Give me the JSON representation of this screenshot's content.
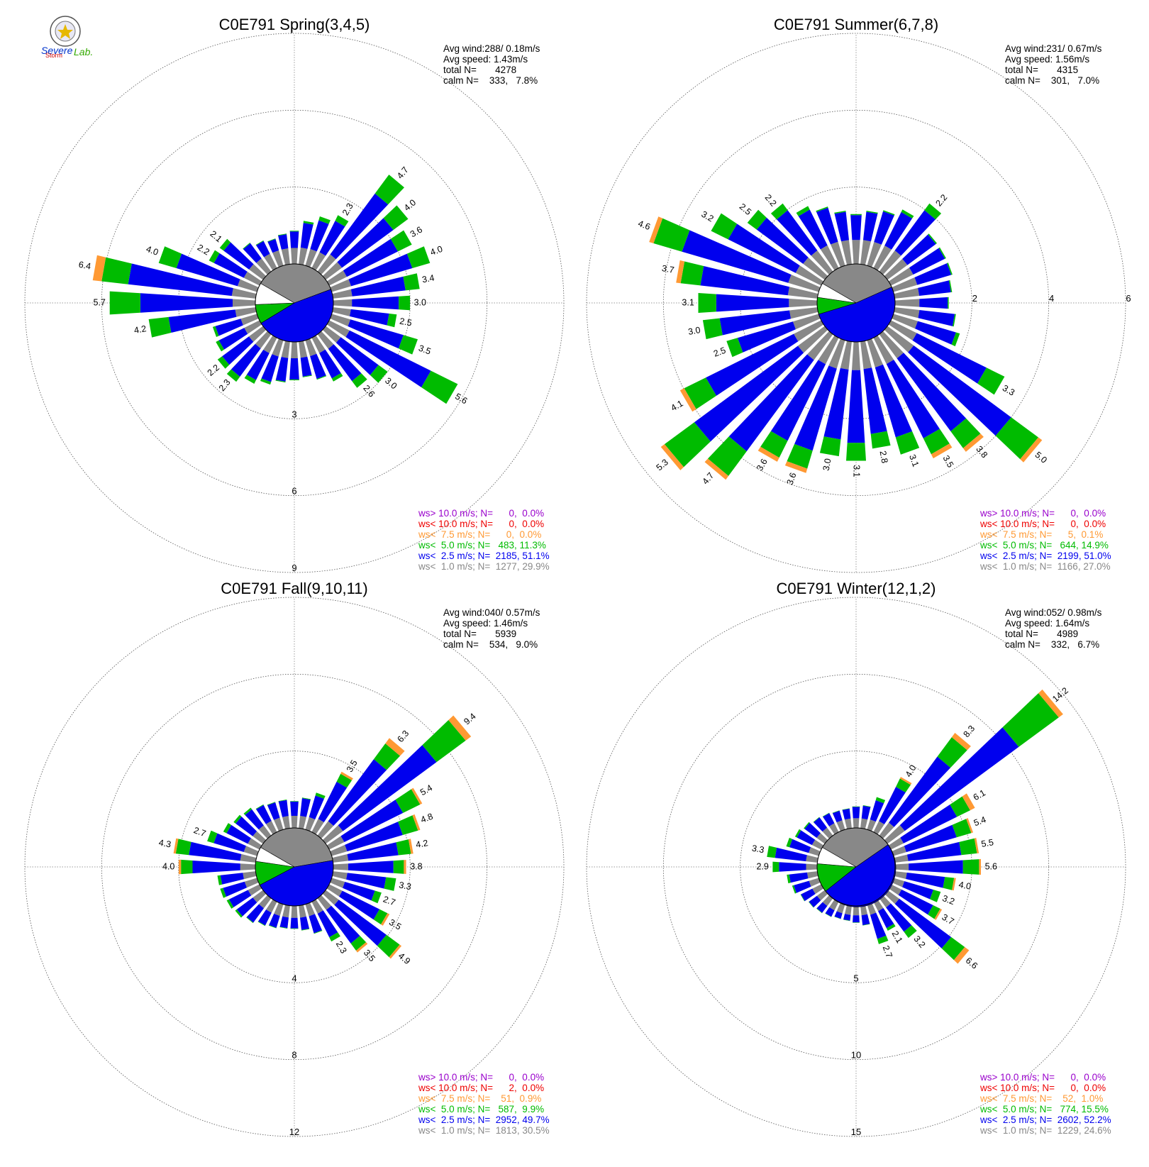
{
  "logo": {
    "line1": "Severe",
    "line2": "Storm",
    "line3": "Lab."
  },
  "chart_data": [
    {
      "type": "wind-rose",
      "title": "C0E791 Spring(3,4,5)",
      "stats": {
        "avg_wind": "Avg wind:288/ 0.18m/s",
        "avg_speed": "Avg speed: 1.43m/s",
        "total": "total N=       4278",
        "calm": "calm N=    333,   7.8%"
      },
      "rings": [
        3,
        6,
        9
      ],
      "ring_labels": [
        "3",
        "6",
        "9"
      ],
      "ring_label_axis": "south",
      "calm_pie": [
        0.36,
        0.47,
        0.08,
        0.09
      ],
      "directions": [
        {
          "dir": 10,
          "v": 1.7
        },
        {
          "dir": 20,
          "v": 2.0
        },
        {
          "dir": 30,
          "v": 2.3,
          "label": "2.3"
        },
        {
          "dir": 40,
          "v": 4.7,
          "label": "4.7"
        },
        {
          "dir": 50,
          "v": 4.0,
          "label": "4.0"
        },
        {
          "dir": 60,
          "v": 3.6,
          "label": "3.6"
        },
        {
          "dir": 70,
          "v": 4.0,
          "label": "4.0"
        },
        {
          "dir": 80,
          "v": 3.4,
          "label": "3.4"
        },
        {
          "dir": 90,
          "v": 3.0,
          "label": "3.0"
        },
        {
          "dir": 100,
          "v": 2.5,
          "label": "2.5"
        },
        {
          "dir": 110,
          "v": 3.5,
          "label": "3.5"
        },
        {
          "dir": 120,
          "v": 5.6,
          "label": "5.6"
        },
        {
          "dir": 130,
          "v": 3.0,
          "label": "3.0"
        },
        {
          "dir": 140,
          "v": 2.6,
          "label": "2.6"
        },
        {
          "dir": 150,
          "v": 1.9
        },
        {
          "dir": 160,
          "v": 1.6
        },
        {
          "dir": 170,
          "v": 1.4
        },
        {
          "dir": 180,
          "v": 1.5
        },
        {
          "dir": 190,
          "v": 1.6
        },
        {
          "dir": 200,
          "v": 1.8
        },
        {
          "dir": 210,
          "v": 2.0
        },
        {
          "dir": 220,
          "v": 2.3,
          "label": "2.3"
        },
        {
          "dir": 230,
          "v": 2.2,
          "label": "2.2"
        },
        {
          "dir": 240,
          "v": 1.9
        },
        {
          "dir": 250,
          "v": 1.8
        },
        {
          "dir": 260,
          "v": 4.2,
          "label": "4.2"
        },
        {
          "dir": 270,
          "v": 5.7,
          "label": "5.7"
        },
        {
          "dir": 280,
          "v": 6.4,
          "label": "6.4"
        },
        {
          "dir": 290,
          "v": 4.0,
          "label": "4.0"
        },
        {
          "dir": 300,
          "v": 2.2,
          "label": "2.2"
        },
        {
          "dir": 310,
          "v": 2.1,
          "label": "2.1"
        },
        {
          "dir": 320,
          "v": 1.4
        },
        {
          "dir": 330,
          "v": 1.2
        },
        {
          "dir": 340,
          "v": 1.1
        },
        {
          "dir": 350,
          "v": 1.2
        },
        {
          "dir": 360,
          "v": 1.3
        }
      ],
      "legend": [
        {
          "text": "ws> 10.0 m/s; N=      0,  0.0%",
          "color": "#9900cc"
        },
        {
          "text": "ws< 10.0 m/s; N=      0,  0.0%",
          "color": "#ee0000"
        },
        {
          "text": "ws<  7.5 m/s; N=      0,  0.0%",
          "color": "#ff9933"
        },
        {
          "text": "ws<  5.0 m/s; N=   483, 11.3%",
          "color": "#00bb00"
        },
        {
          "text": "ws<  2.5 m/s; N=  2185, 51.1%",
          "color": "#0000ee"
        },
        {
          "text": "ws<  1.0 m/s; N=  1277, 29.9%",
          "color": "#888888"
        }
      ]
    },
    {
      "type": "wind-rose",
      "title": "C0E791 Summer(6,7,8)",
      "stats": {
        "avg_wind": "Avg wind:231/ 0.67m/s",
        "avg_speed": "Avg speed: 1.56m/s",
        "total": "total N=       4315",
        "calm": "calm N=    301,   7.0%"
      },
      "rings": [
        2,
        4,
        6
      ],
      "ring_labels": [
        "2",
        "4",
        "6"
      ],
      "ring_label_axis": "east",
      "calm_pie": [
        0.35,
        0.52,
        0.07,
        0.06
      ],
      "directions": [
        {
          "dir": 10,
          "v": 1.4
        },
        {
          "dir": 20,
          "v": 1.5
        },
        {
          "dir": 30,
          "v": 1.7
        },
        {
          "dir": 40,
          "v": 2.2,
          "label": "2.2"
        },
        {
          "dir": 50,
          "v": 1.6
        },
        {
          "dir": 60,
          "v": 1.6
        },
        {
          "dir": 70,
          "v": 1.6
        },
        {
          "dir": 80,
          "v": 1.5
        },
        {
          "dir": 90,
          "v": 1.4
        },
        {
          "dir": 100,
          "v": 1.6
        },
        {
          "dir": 110,
          "v": 1.8
        },
        {
          "dir": 120,
          "v": 3.3,
          "label": "3.3"
        },
        {
          "dir": 130,
          "v": 5.0,
          "label": "5.0"
        },
        {
          "dir": 140,
          "v": 3.8,
          "label": "3.8"
        },
        {
          "dir": 150,
          "v": 3.5,
          "label": "3.5"
        },
        {
          "dir": 160,
          "v": 3.1,
          "label": "3.1"
        },
        {
          "dir": 170,
          "v": 2.8,
          "label": "2.8"
        },
        {
          "dir": 180,
          "v": 3.1,
          "label": "3.1"
        },
        {
          "dir": 190,
          "v": 3.0,
          "label": "3.0"
        },
        {
          "dir": 200,
          "v": 3.6,
          "label": "3.6"
        },
        {
          "dir": 210,
          "v": 3.6,
          "label": "3.6"
        },
        {
          "dir": 220,
          "v": 4.7,
          "label": "4.7"
        },
        {
          "dir": 230,
          "v": 5.3,
          "label": "5.3"
        },
        {
          "dir": 240,
          "v": 4.1,
          "label": "4.1"
        },
        {
          "dir": 250,
          "v": 2.5,
          "label": "2.5"
        },
        {
          "dir": 260,
          "v": 3.0,
          "label": "3.0"
        },
        {
          "dir": 270,
          "v": 3.1,
          "label": "3.1"
        },
        {
          "dir": 280,
          "v": 3.7,
          "label": "3.7"
        },
        {
          "dir": 290,
          "v": 4.6,
          "label": "4.6"
        },
        {
          "dir": 300,
          "v": 3.2,
          "label": "3.2"
        },
        {
          "dir": 310,
          "v": 2.5,
          "label": "2.5"
        },
        {
          "dir": 320,
          "v": 2.2,
          "label": "2.2"
        },
        {
          "dir": 330,
          "v": 1.8
        },
        {
          "dir": 340,
          "v": 1.6
        },
        {
          "dir": 350,
          "v": 1.4
        },
        {
          "dir": 360,
          "v": 1.3
        }
      ],
      "legend": [
        {
          "text": "ws> 10.0 m/s; N=      0,  0.0%",
          "color": "#9900cc"
        },
        {
          "text": "ws< 10.0 m/s; N=      0,  0.0%",
          "color": "#ee0000"
        },
        {
          "text": "ws<  7.5 m/s; N=      5,  0.1%",
          "color": "#ff9933"
        },
        {
          "text": "ws<  5.0 m/s; N=   644, 14.9%",
          "color": "#00bb00"
        },
        {
          "text": "ws<  2.5 m/s; N=  2199, 51.0%",
          "color": "#0000ee"
        },
        {
          "text": "ws<  1.0 m/s; N=  1166, 27.0%",
          "color": "#888888"
        }
      ]
    },
    {
      "type": "wind-rose",
      "title": "C0E791 Fall(9,10,11)",
      "stats": {
        "avg_wind": "Avg wind:040/ 0.57m/s",
        "avg_speed": "Avg speed: 1.46m/s",
        "total": "total N=       5939",
        "calm": "calm N=    534,   9.0%"
      },
      "rings": [
        4,
        8,
        12
      ],
      "ring_labels": [
        "4",
        "8",
        "12"
      ],
      "ring_label_axis": "south",
      "calm_pie": [
        0.39,
        0.45,
        0.1,
        0.06
      ],
      "directions": [
        {
          "dir": 10,
          "v": 1.6
        },
        {
          "dir": 20,
          "v": 2.0
        },
        {
          "dir": 30,
          "v": 3.5,
          "label": "3.5"
        },
        {
          "dir": 40,
          "v": 6.3,
          "label": "6.3"
        },
        {
          "dir": 50,
          "v": 9.4,
          "label": "9.4"
        },
        {
          "dir": 60,
          "v": 5.4,
          "label": "5.4"
        },
        {
          "dir": 70,
          "v": 4.8,
          "label": "4.8"
        },
        {
          "dir": 80,
          "v": 4.2,
          "label": "4.2"
        },
        {
          "dir": 90,
          "v": 3.8,
          "label": "3.8"
        },
        {
          "dir": 100,
          "v": 3.3,
          "label": "3.3"
        },
        {
          "dir": 110,
          "v": 2.7,
          "label": "2.7"
        },
        {
          "dir": 120,
          "v": 3.5,
          "label": "3.5"
        },
        {
          "dir": 130,
          "v": 4.9,
          "label": "4.9"
        },
        {
          "dir": 140,
          "v": 3.5,
          "label": "3.5"
        },
        {
          "dir": 150,
          "v": 2.3,
          "label": "2.3"
        },
        {
          "dir": 160,
          "v": 1.6
        },
        {
          "dir": 170,
          "v": 1.3
        },
        {
          "dir": 180,
          "v": 1.2
        },
        {
          "dir": 190,
          "v": 1.2
        },
        {
          "dir": 200,
          "v": 1.3
        },
        {
          "dir": 210,
          "v": 1.4
        },
        {
          "dir": 220,
          "v": 1.6
        },
        {
          "dir": 230,
          "v": 1.8
        },
        {
          "dir": 240,
          "v": 1.9
        },
        {
          "dir": 250,
          "v": 2.0
        },
        {
          "dir": 260,
          "v": 2.0
        },
        {
          "dir": 270,
          "v": 4.0,
          "label": "4.0"
        },
        {
          "dir": 280,
          "v": 4.3,
          "label": "4.3"
        },
        {
          "dir": 290,
          "v": 2.7,
          "label": "2.7"
        },
        {
          "dir": 300,
          "v": 2.1
        },
        {
          "dir": 310,
          "v": 1.9
        },
        {
          "dir": 320,
          "v": 1.8
        },
        {
          "dir": 330,
          "v": 1.6
        },
        {
          "dir": 340,
          "v": 1.5
        },
        {
          "dir": 350,
          "v": 1.5
        },
        {
          "dir": 360,
          "v": 1.4
        }
      ],
      "legend": [
        {
          "text": "ws> 10.0 m/s; N=      0,  0.0%",
          "color": "#9900cc"
        },
        {
          "text": "ws< 10.0 m/s; N=      2,  0.0%",
          "color": "#ee0000"
        },
        {
          "text": "ws<  7.5 m/s; N=    51,  0.9%",
          "color": "#ff9933"
        },
        {
          "text": "ws<  5.0 m/s; N=   587,  9.9%",
          "color": "#00bb00"
        },
        {
          "text": "ws<  2.5 m/s; N=  2952, 49.7%",
          "color": "#0000ee"
        },
        {
          "text": "ws<  1.0 m/s; N=  1813, 30.5%",
          "color": "#888888"
        }
      ]
    },
    {
      "type": "wind-rose",
      "title": "C0E791 Winter(12,1,2)",
      "stats": {
        "avg_wind": "Avg wind:052/ 0.98m/s",
        "avg_speed": "Avg speed: 1.64m/s",
        "total": "total N=       4989",
        "calm": "calm N=    332,   6.7%"
      },
      "rings": [
        5,
        10,
        15
      ],
      "ring_labels": [
        "5",
        "10",
        "15"
      ],
      "ring_label_axis": "south",
      "calm_pie": [
        0.32,
        0.49,
        0.12,
        0.07
      ],
      "directions": [
        {
          "dir": 10,
          "v": 1.5
        },
        {
          "dir": 20,
          "v": 2.2
        },
        {
          "dir": 30,
          "v": 4.0,
          "label": "4.0"
        },
        {
          "dir": 40,
          "v": 8.3,
          "label": "8.3"
        },
        {
          "dir": 50,
          "v": 14.2,
          "label": "14.2"
        },
        {
          "dir": 60,
          "v": 6.1,
          "label": "6.1"
        },
        {
          "dir": 70,
          "v": 5.4,
          "label": "5.4"
        },
        {
          "dir": 80,
          "v": 5.5,
          "label": "5.5"
        },
        {
          "dir": 90,
          "v": 5.6,
          "label": "5.6"
        },
        {
          "dir": 100,
          "v": 4.0,
          "label": "4.0"
        },
        {
          "dir": 110,
          "v": 3.2,
          "label": "3.2"
        },
        {
          "dir": 120,
          "v": 3.7,
          "label": "3.7"
        },
        {
          "dir": 130,
          "v": 6.6,
          "label": "6.6"
        },
        {
          "dir": 140,
          "v": 3.2,
          "label": "3.2"
        },
        {
          "dir": 150,
          "v": 2.1,
          "label": "2.1"
        },
        {
          "dir": 160,
          "v": 2.7,
          "label": "2.7"
        },
        {
          "dir": 170,
          "v": 1.3
        },
        {
          "dir": 180,
          "v": 1.1
        },
        {
          "dir": 190,
          "v": 1.0
        },
        {
          "dir": 200,
          "v": 1.0
        },
        {
          "dir": 210,
          "v": 1.1
        },
        {
          "dir": 220,
          "v": 1.2
        },
        {
          "dir": 230,
          "v": 1.3
        },
        {
          "dir": 240,
          "v": 1.5
        },
        {
          "dir": 250,
          "v": 1.8
        },
        {
          "dir": 260,
          "v": 2.0
        },
        {
          "dir": 270,
          "v": 2.9,
          "label": "2.9"
        },
        {
          "dir": 280,
          "v": 3.3,
          "label": "3.3"
        },
        {
          "dir": 290,
          "v": 2.2
        },
        {
          "dir": 300,
          "v": 1.9
        },
        {
          "dir": 310,
          "v": 1.7
        },
        {
          "dir": 320,
          "v": 1.5
        },
        {
          "dir": 330,
          "v": 1.4
        },
        {
          "dir": 340,
          "v": 1.3
        },
        {
          "dir": 350,
          "v": 1.3
        },
        {
          "dir": 360,
          "v": 1.4
        }
      ],
      "legend": [
        {
          "text": "ws> 10.0 m/s; N=      0,  0.0%",
          "color": "#9900cc"
        },
        {
          "text": "ws< 10.0 m/s; N=      0,  0.0%",
          "color": "#ee0000"
        },
        {
          "text": "ws<  7.5 m/s; N=    52,  1.0%",
          "color": "#ff9933"
        },
        {
          "text": "ws<  5.0 m/s; N=   774, 15.5%",
          "color": "#00bb00"
        },
        {
          "text": "ws<  2.5 m/s; N=  2602, 52.2%",
          "color": "#0000ee"
        },
        {
          "text": "ws<  1.0 m/s; N=  1229, 24.6%",
          "color": "#888888"
        }
      ]
    }
  ],
  "colors": {
    "gray": "#888888",
    "blue": "#0000ee",
    "green": "#00bb00",
    "orange": "#ff9933",
    "red": "#ee0000",
    "purple": "#9900cc"
  }
}
